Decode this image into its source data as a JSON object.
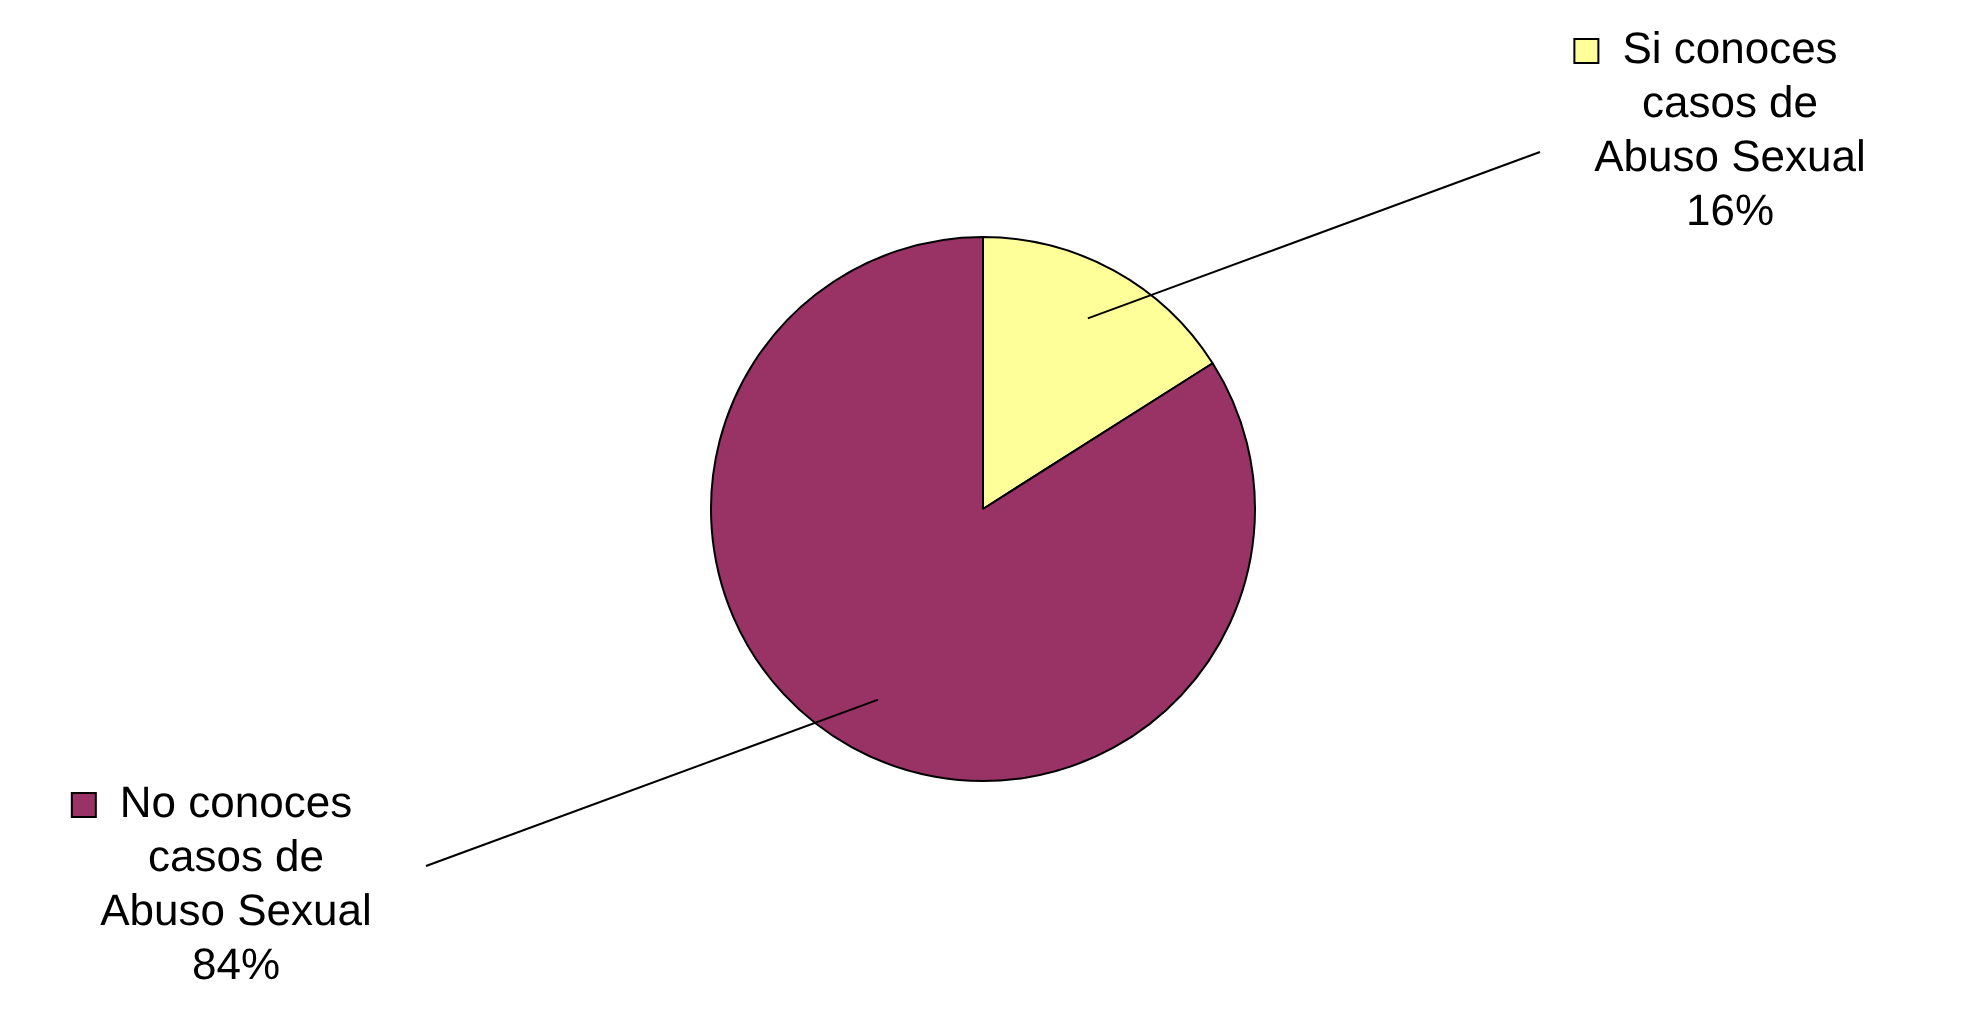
{
  "chart_data": {
    "type": "pie",
    "categories": [
      "Si conoces casos de Abuso Sexual",
      "No conoces casos de Abuso Sexual"
    ],
    "values": [
      16,
      84
    ],
    "colors": [
      "#ffff99",
      "#993366"
    ],
    "value_labels": [
      "16%",
      "84%"
    ],
    "legend": "right"
  }
}
